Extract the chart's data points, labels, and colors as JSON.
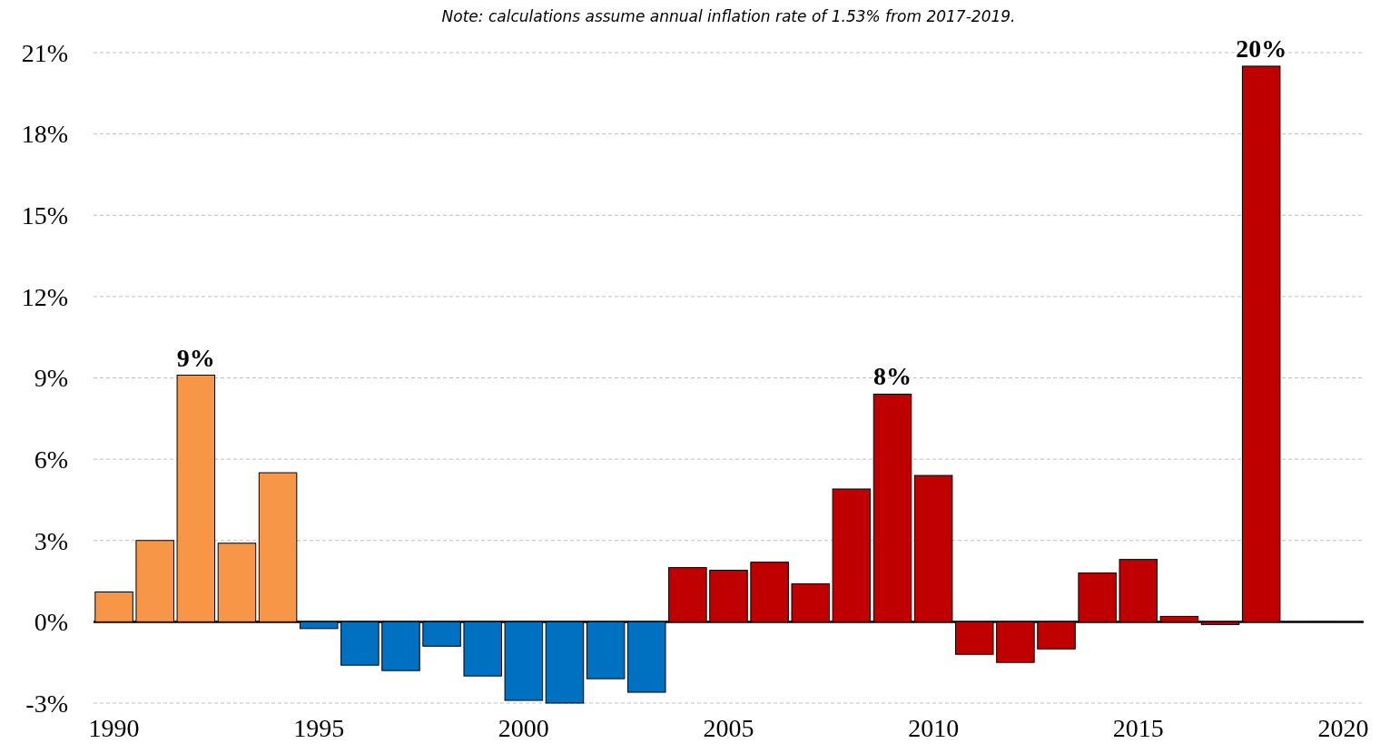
{
  "chart_data": {
    "type": "bar",
    "x": [
      1990,
      1991,
      1992,
      1993,
      1994,
      1995,
      1996,
      1997,
      1998,
      1999,
      2000,
      2001,
      2002,
      2003,
      2004,
      2005,
      2006,
      2007,
      2008,
      2009,
      2010,
      2011,
      2012,
      2013,
      2014,
      2015,
      2016,
      2017,
      2018
    ],
    "values": [
      1.1,
      3.0,
      9.1,
      2.9,
      5.5,
      -0.25,
      -1.6,
      -1.8,
      -0.9,
      -2.0,
      -2.9,
      -3.0,
      -2.1,
      -2.6,
      2.0,
      1.9,
      2.2,
      1.4,
      4.9,
      8.4,
      5.4,
      -1.2,
      -1.5,
      -1.0,
      1.8,
      2.3,
      0.2,
      -0.1,
      20.5
    ],
    "colors": [
      "#f79646",
      "#f79646",
      "#f79646",
      "#f79646",
      "#f79646",
      "#0070c0",
      "#0070c0",
      "#0070c0",
      "#0070c0",
      "#0070c0",
      "#0070c0",
      "#0070c0",
      "#0070c0",
      "#0070c0",
      "#c00000",
      "#c00000",
      "#c00000",
      "#c00000",
      "#c00000",
      "#c00000",
      "#c00000",
      "#c00000",
      "#c00000",
      "#c00000",
      "#c00000",
      "#c00000",
      "#c00000",
      "#c00000",
      "#c00000"
    ],
    "value_labels": [
      null,
      null,
      "9%",
      null,
      null,
      null,
      null,
      null,
      null,
      null,
      null,
      null,
      null,
      null,
      null,
      null,
      null,
      null,
      null,
      "8%",
      null,
      null,
      null,
      null,
      null,
      null,
      null,
      null,
      "20%"
    ],
    "xlim": [
      1989.5,
      2020.5
    ],
    "xticks": [
      1990,
      1995,
      2000,
      2005,
      2010,
      2015,
      2020
    ],
    "ylim": [
      -3,
      21
    ],
    "yticks": [
      {
        "value": -3,
        "label": "-3%"
      },
      {
        "value": 0,
        "label": "0%"
      },
      {
        "value": 3,
        "label": "3%"
      },
      {
        "value": 6,
        "label": "6%"
      },
      {
        "value": 9,
        "label": "9%"
      },
      {
        "value": 12,
        "label": "12%"
      },
      {
        "value": 15,
        "label": "15%"
      },
      {
        "value": 18,
        "label": "18%"
      },
      {
        "value": 21,
        "label": "21%"
      }
    ],
    "grid": "y",
    "annotations": [
      "Note: calculations assume annual inflation rate of 1.53% from 2017-2019."
    ]
  }
}
